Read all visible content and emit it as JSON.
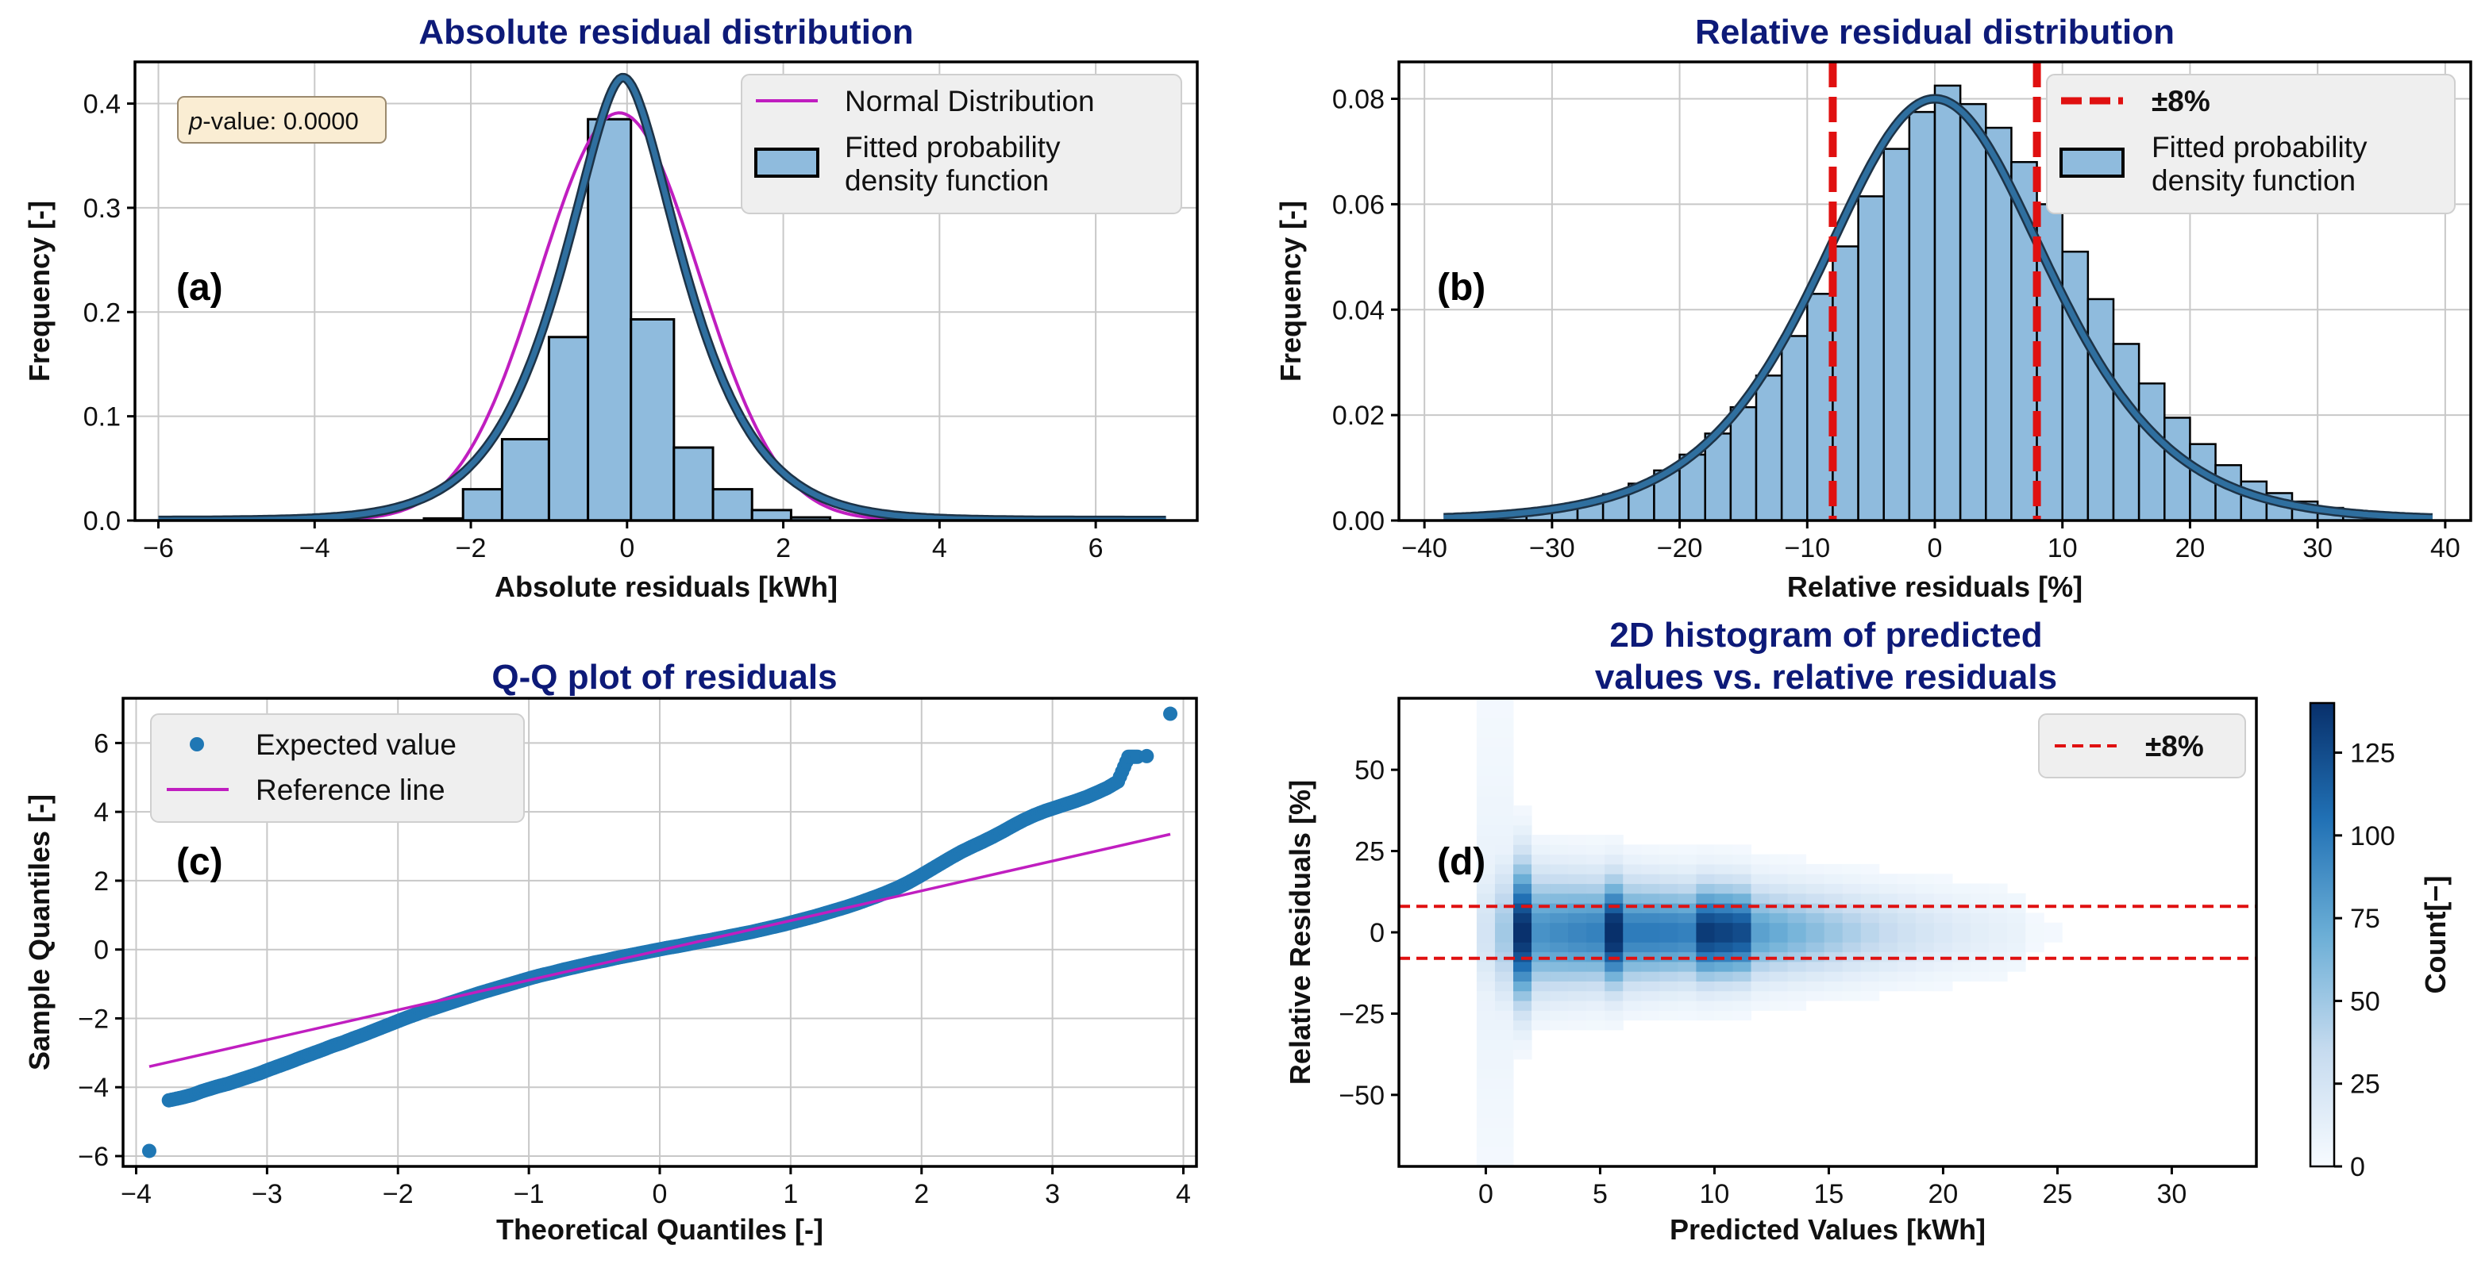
{
  "colors": {
    "title": "#0d1a78",
    "bar_fill": "#8fbbdd",
    "pdf_line": "#2f6f9f",
    "normal_line": "#c01ec0",
    "threshold": "#e01010",
    "scatter": "#1f77b4",
    "legend_bg": "#efefef",
    "pvalue_bg": "#faedd3"
  },
  "chart_data": [
    {
      "id": "a",
      "panel_tag": "(a)",
      "type": "bar",
      "title": "Absolute residual distribution",
      "xlabel": "Absolute residuals [kWh]",
      "ylabel": "Frequency [-]",
      "xlim": [
        -6.3,
        7.3
      ],
      "ylim": [
        0,
        0.44
      ],
      "xticks": [
        -6,
        -4,
        -2,
        0,
        2,
        4,
        6
      ],
      "xtick_labels": [
        "−6",
        "−4",
        "−2",
        "0",
        "2",
        "4",
        "6"
      ],
      "yticks": [
        0.0,
        0.1,
        0.2,
        0.3,
        0.4
      ],
      "ytick_labels": [
        "0.0",
        "0.1",
        "0.2",
        "0.3",
        "0.4"
      ],
      "bins": [
        {
          "x0": -2.6,
          "x1": -2.1,
          "y": 0.002
        },
        {
          "x0": -2.1,
          "x1": -1.6,
          "y": 0.03
        },
        {
          "x0": -1.6,
          "x1": -1.0,
          "y": 0.078
        },
        {
          "x0": -1.0,
          "x1": -0.5,
          "y": 0.176
        },
        {
          "x0": -0.5,
          "x1": 0.05,
          "y": 0.385
        },
        {
          "x0": 0.05,
          "x1": 0.6,
          "y": 0.193
        },
        {
          "x0": 0.6,
          "x1": 1.1,
          "y": 0.07
        },
        {
          "x0": 1.1,
          "x1": 1.6,
          "y": 0.03
        },
        {
          "x0": 1.6,
          "x1": 2.1,
          "y": 0.01
        },
        {
          "x0": 2.1,
          "x1": 2.6,
          "y": 0.003
        }
      ],
      "normal": {
        "mu": -0.1,
        "sigma": 1.02,
        "x_range": [
          -6,
          6.9
        ]
      },
      "pdf": {
        "mu": -0.05,
        "b": 0.54,
        "peak": 0.425,
        "x_range": [
          -6,
          6.9
        ]
      },
      "annotation": {
        "prefix": "p",
        "text": "-value: 0.0000"
      },
      "legend": [
        "Normal Distribution",
        "Fitted probability",
        "density function"
      ]
    },
    {
      "id": "b",
      "panel_tag": "(b)",
      "type": "bar",
      "title": "Relative residual distribution",
      "xlabel": "Relative residuals [%]",
      "ylabel": "Frequency [-]",
      "xlim": [
        -42,
        42
      ],
      "ylim": [
        0,
        0.087
      ],
      "xticks": [
        -40,
        -30,
        -20,
        -10,
        0,
        10,
        20,
        30,
        40
      ],
      "xtick_labels": [
        "−40",
        "−30",
        "−20",
        "−10",
        "0",
        "10",
        "20",
        "30",
        "40"
      ],
      "yticks": [
        0.0,
        0.02,
        0.04,
        0.06,
        0.08
      ],
      "ytick_labels": [
        "0.00",
        "0.02",
        "0.04",
        "0.06",
        "0.08"
      ],
      "bin_edges": [
        -36,
        -34,
        -32,
        -30,
        -28,
        -26,
        -24,
        -22,
        -20,
        -18,
        -16,
        -14,
        -12,
        -10,
        -8,
        -6,
        -4,
        -2,
        0,
        2,
        4,
        6,
        8,
        10,
        12,
        14,
        16,
        18,
        20,
        22,
        24,
        26,
        28,
        30,
        32,
        34,
        36
      ],
      "values": [
        0.0008,
        0.0012,
        0.0018,
        0.0026,
        0.0036,
        0.005,
        0.007,
        0.0095,
        0.0125,
        0.0165,
        0.0215,
        0.0275,
        0.035,
        0.043,
        0.052,
        0.0615,
        0.0705,
        0.0775,
        0.0825,
        0.079,
        0.0745,
        0.068,
        0.06,
        0.051,
        0.042,
        0.0335,
        0.026,
        0.0195,
        0.0145,
        0.0105,
        0.0074,
        0.0052,
        0.0036,
        0.0024,
        0.0016,
        0.001
      ],
      "pdf": {
        "mu": 0.0,
        "scale": 6.0,
        "peak": 0.08,
        "x_range": [
          -38.5,
          39
        ]
      },
      "threshold_lines": [
        -8,
        8
      ],
      "legend": [
        "±8%",
        "Fitted probability",
        "density function"
      ]
    },
    {
      "id": "c",
      "panel_tag": "(c)",
      "type": "scatter",
      "title": "Q-Q plot of residuals",
      "xlabel": "Theoretical Quantiles [-]",
      "ylabel": "Sample Quantiles [-]",
      "xlim": [
        -4.1,
        4.1
      ],
      "ylim": [
        -6.3,
        7.3
      ],
      "xticks": [
        -4,
        -3,
        -2,
        -1,
        0,
        1,
        2,
        3,
        4
      ],
      "xtick_labels": [
        "−4",
        "−3",
        "−2",
        "−1",
        "0",
        "1",
        "2",
        "3",
        "4"
      ],
      "yticks": [
        -6,
        -4,
        -2,
        0,
        2,
        4,
        6
      ],
      "ytick_labels": [
        "−6",
        "−4",
        "−2",
        "0",
        "2",
        "4",
        "6"
      ],
      "points": [
        [
          -3.9,
          -5.85
        ],
        [
          -3.75,
          -4.38
        ],
        [
          -3.65,
          -4.3
        ],
        [
          -3.57,
          -4.22
        ],
        [
          -3.5,
          -4.12
        ],
        [
          -3.44,
          -4.05
        ],
        [
          -3.38,
          -3.98
        ],
        [
          -3.3,
          -3.9
        ],
        [
          -3.22,
          -3.8
        ],
        [
          -3.14,
          -3.7
        ],
        [
          -3.06,
          -3.6
        ],
        [
          -2.98,
          -3.48
        ],
        [
          -2.9,
          -3.37
        ],
        [
          -2.82,
          -3.26
        ],
        [
          -2.74,
          -3.14
        ],
        [
          -2.66,
          -3.03
        ],
        [
          -2.58,
          -2.92
        ],
        [
          -2.5,
          -2.8
        ],
        [
          -2.42,
          -2.7
        ],
        [
          -2.34,
          -2.58
        ],
        [
          -2.26,
          -2.47
        ],
        [
          -2.18,
          -2.35
        ],
        [
          -2.1,
          -2.23
        ],
        [
          -2.02,
          -2.11
        ],
        [
          -1.94,
          -1.99
        ],
        [
          -1.86,
          -1.88
        ],
        [
          -1.78,
          -1.77
        ],
        [
          -1.7,
          -1.67
        ],
        [
          -1.62,
          -1.57
        ],
        [
          -1.54,
          -1.47
        ],
        [
          -1.46,
          -1.37
        ],
        [
          -1.38,
          -1.27
        ],
        [
          -1.3,
          -1.18
        ],
        [
          -1.22,
          -1.09
        ],
        [
          -1.14,
          -1.0
        ],
        [
          -1.06,
          -0.91
        ],
        [
          -0.98,
          -0.82
        ],
        [
          -0.9,
          -0.74
        ],
        [
          -0.82,
          -0.67
        ],
        [
          -0.74,
          -0.59
        ],
        [
          -0.66,
          -0.52
        ],
        [
          -0.58,
          -0.45
        ],
        [
          -0.5,
          -0.38
        ],
        [
          -0.42,
          -0.32
        ],
        [
          -0.34,
          -0.25
        ],
        [
          -0.26,
          -0.19
        ],
        [
          -0.18,
          -0.13
        ],
        [
          -0.1,
          -0.07
        ],
        [
          -0.02,
          -0.01
        ],
        [
          0.06,
          0.05
        ],
        [
          0.14,
          0.1
        ],
        [
          0.22,
          0.16
        ],
        [
          0.3,
          0.22
        ],
        [
          0.38,
          0.27
        ],
        [
          0.46,
          0.33
        ],
        [
          0.54,
          0.39
        ],
        [
          0.62,
          0.45
        ],
        [
          0.7,
          0.51
        ],
        [
          0.78,
          0.58
        ],
        [
          0.86,
          0.65
        ],
        [
          0.94,
          0.72
        ],
        [
          1.02,
          0.8
        ],
        [
          1.1,
          0.88
        ],
        [
          1.18,
          0.96
        ],
        [
          1.26,
          1.05
        ],
        [
          1.34,
          1.14
        ],
        [
          1.42,
          1.23
        ],
        [
          1.5,
          1.33
        ],
        [
          1.58,
          1.44
        ],
        [
          1.66,
          1.55
        ],
        [
          1.74,
          1.67
        ],
        [
          1.82,
          1.8
        ],
        [
          1.9,
          1.95
        ],
        [
          1.98,
          2.12
        ],
        [
          2.06,
          2.3
        ],
        [
          2.14,
          2.48
        ],
        [
          2.22,
          2.66
        ],
        [
          2.3,
          2.83
        ],
        [
          2.38,
          2.98
        ],
        [
          2.46,
          3.12
        ],
        [
          2.54,
          3.27
        ],
        [
          2.62,
          3.43
        ],
        [
          2.7,
          3.6
        ],
        [
          2.78,
          3.76
        ],
        [
          2.86,
          3.9
        ],
        [
          2.94,
          4.02
        ],
        [
          3.02,
          4.12
        ],
        [
          3.1,
          4.22
        ],
        [
          3.18,
          4.32
        ],
        [
          3.26,
          4.43
        ],
        [
          3.34,
          4.56
        ],
        [
          3.42,
          4.7
        ],
        [
          3.5,
          4.88
        ],
        [
          3.58,
          5.6
        ],
        [
          3.65,
          5.6
        ],
        [
          3.72,
          5.62
        ],
        [
          3.9,
          6.85
        ]
      ],
      "reference_line": {
        "x": [
          -3.9,
          3.9
        ],
        "y": [
          -3.4,
          3.35
        ]
      },
      "legend": [
        "Expected value",
        "Reference line"
      ]
    },
    {
      "id": "d",
      "panel_tag": "(d)",
      "type": "heatmap",
      "title_lines": [
        "2D histogram of predicted",
        "values vs. relative residuals"
      ],
      "xlabel": "Predicted Values [kWh]",
      "ylabel": "Relative Residuals [%]",
      "xlim": [
        -3.8,
        33.7
      ],
      "ylim": [
        -72,
        72
      ],
      "xticks": [
        0,
        5,
        10,
        15,
        20,
        25,
        30
      ],
      "xtick_labels": [
        "0",
        "5",
        "10",
        "15",
        "20",
        "25",
        "30"
      ],
      "yticks": [
        -50,
        -25,
        0,
        25,
        50
      ],
      "ytick_labels": [
        "−50",
        "−25",
        "0",
        "25",
        "50"
      ],
      "threshold_lines": [
        -8,
        8
      ],
      "colorbar": {
        "label": "Count[−]",
        "min": 0,
        "max": 140,
        "ticks": [
          0,
          25,
          50,
          75,
          100,
          125
        ]
      },
      "legend": [
        "±8%"
      ]
    }
  ]
}
